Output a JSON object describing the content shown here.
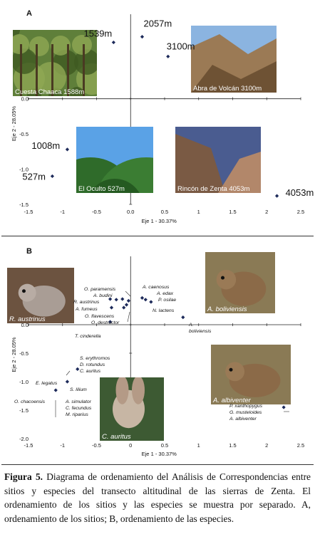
{
  "figure": {
    "caption_label": "Figura 5.",
    "caption_text": " Diagrama de ordenamiento del Análisis de Correspondencias entre sitios y especies del transecto altitudinal de las sierras de Zenta. El ordenamiento de los sitios y las especies se muestra por separado. A, ordenamiento de los sitios; B, ordenamiento de las especies."
  },
  "chart_data": [
    {
      "type": "scatter",
      "panel": "A",
      "xlabel": "Eje 1 - 30.37%",
      "ylabel": "Eje 2 - 28.05%",
      "xlim": [
        -1.5,
        2.5
      ],
      "ylim": [
        -1.5,
        1.2
      ],
      "xticks": [
        "-1.5",
        "-1",
        "-0.5",
        "0.0",
        "0.5",
        "1",
        "1.5",
        "2",
        "2.5"
      ],
      "yticks": [
        "0.0",
        "-0.5",
        "-1.0",
        "-1.5"
      ],
      "points": [
        {
          "label": "1539m",
          "x": -0.25,
          "y": 0.8
        },
        {
          "label": "2057m",
          "x": 0.17,
          "y": 0.88
        },
        {
          "label": "3100m",
          "x": 0.55,
          "y": 0.6
        },
        {
          "label": "1008m",
          "x": -0.93,
          "y": -0.72
        },
        {
          "label": "527m",
          "x": -1.15,
          "y": -1.1
        },
        {
          "label": "4053m",
          "x": 2.15,
          "y": -1.38
        }
      ],
      "photos": [
        {
          "caption": "Cuesta Chaaca 1588m",
          "kind": "forest"
        },
        {
          "caption": "Abra de Volcán 3100m",
          "kind": "mountain"
        },
        {
          "caption": "El Oculto 527m",
          "kind": "hills"
        },
        {
          "caption": "Rincón de Zenta 4053m",
          "kind": "rock"
        }
      ]
    },
    {
      "type": "scatter",
      "panel": "B",
      "xlabel": "Eje 1 - 30.37%",
      "ylabel": "Eje 2 - 28.05%",
      "xlim": [
        -1.5,
        2.5
      ],
      "ylim": [
        -2.0,
        1.2
      ],
      "xticks": [
        "-1.5",
        "-1",
        "-0.5",
        "0",
        "0.5",
        "1",
        "1.5",
        "2",
        "2.5"
      ],
      "yticks": [
        "0.0",
        "-0.5",
        "-1.0",
        "-1.5",
        "-2.0"
      ],
      "points": [
        {
          "x": -0.3,
          "y": 0.45
        },
        {
          "x": -0.21,
          "y": 0.44
        },
        {
          "x": -0.12,
          "y": 0.45
        },
        {
          "x": -0.28,
          "y": 0.3
        },
        {
          "x": -0.1,
          "y": 0.3
        },
        {
          "x": -0.03,
          "y": 0.42
        },
        {
          "x": -0.06,
          "y": 0.35
        },
        {
          "x": -0.3,
          "y": 0.05
        },
        {
          "x": 0.17,
          "y": 0.47
        },
        {
          "x": 0.22,
          "y": 0.44
        },
        {
          "x": 0.3,
          "y": 0.4
        },
        {
          "x": 0.77,
          "y": 0.13
        },
        {
          "x": -0.78,
          "y": -0.78
        },
        {
          "x": -0.93,
          "y": -1.0
        },
        {
          "x": -1.1,
          "y": -1.15
        },
        {
          "x": 2.25,
          "y": -1.45
        }
      ],
      "labels": [
        "O. paramensis",
        "A. budini",
        "R. austrinus",
        "A. fumeus",
        "O. flavescens",
        "O. destructor",
        "T. cinderella",
        "A. caenosus",
        "A. edax",
        "P. osilae",
        "N. lactens",
        "A.",
        "boliviensis",
        "S. erythromos",
        "D. rotundus",
        "C. auritus",
        "E. legatus",
        "S. lilium",
        "O. chacoensis",
        "A. simulator",
        "C. fecundus",
        "M. riparius",
        "P. xanthopygus",
        "G. musteloides",
        "A. albiventer"
      ],
      "photos": [
        {
          "caption": "R. austrinus",
          "kind": "mouse"
        },
        {
          "caption": "A. boliviensis",
          "kind": "vole"
        },
        {
          "caption": "A. albiventer",
          "kind": "vole"
        },
        {
          "caption": "C. auritus",
          "kind": "bat"
        }
      ]
    }
  ],
  "panels": {
    "a_letter": "A",
    "b_letter": "B"
  }
}
